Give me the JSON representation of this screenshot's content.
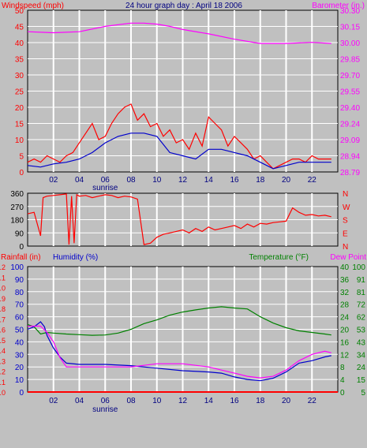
{
  "header": {
    "left_title": "Windspeed (mph)",
    "center_title": "24 hour graph day : April 18 2006",
    "right_title": "Barometer (in.)"
  },
  "colors": {
    "background": "#c0c0c0",
    "plot_bg": "#c0c0c0",
    "grid": "#ffffff",
    "wind": "#ff0000",
    "wind_avg": "#0000cc",
    "barometer": "#ff00ff",
    "direction": "#ff0000",
    "rain": "#ff0000",
    "humidity": "#0000cc",
    "temperature": "#008000",
    "dewpoint": "#ff00ff"
  },
  "x_ticks": [
    "02",
    "04",
    "06",
    "08",
    "10",
    "12",
    "14",
    "16",
    "18",
    "20",
    "22"
  ],
  "sunrise_label": "sunrise",
  "chart_data": [
    {
      "type": "line",
      "title": "24 hour graph day : April 18 2006",
      "xlabel": "",
      "ylabel": "Windspeed (mph)",
      "ylabel_right": "Barometer (in.)",
      "x_range_hours": [
        0,
        24
      ],
      "ylim": [
        0,
        50
      ],
      "ylim_right": [
        28.79,
        30.3
      ],
      "y_ticks_left": [
        "0",
        "5",
        "10",
        "15",
        "20",
        "25",
        "30",
        "35",
        "40",
        "45",
        "50"
      ],
      "y_ticks_right": [
        "28.79",
        "28.94",
        "29.09",
        "29.24",
        "29.40",
        "29.55",
        "29.70",
        "29.85",
        "30.00",
        "30.15",
        "30.30"
      ],
      "series": [
        {
          "name": "Windspeed (mph)",
          "axis": "left",
          "x": [
            0,
            0.5,
            1,
            1.5,
            2,
            2.5,
            3,
            3.5,
            4,
            4.5,
            5,
            5.5,
            6,
            6.5,
            7,
            7.5,
            8,
            8.5,
            9,
            9.5,
            10,
            10.5,
            11,
            11.5,
            12,
            12.5,
            13,
            13.5,
            14,
            14.5,
            15,
            15.5,
            16,
            16.5,
            17,
            17.5,
            18,
            18.5,
            19,
            19.5,
            20,
            20.5,
            21,
            21.5,
            22,
            22.5,
            23,
            23.5
          ],
          "y": [
            3,
            4,
            3,
            5,
            4,
            3,
            5,
            6,
            9,
            12,
            15,
            10,
            11,
            15,
            18,
            20,
            21,
            16,
            18,
            14,
            15,
            11,
            13,
            9,
            10,
            7,
            12,
            8,
            17,
            15,
            13,
            8,
            11,
            9,
            7,
            4,
            5,
            3,
            1,
            2,
            3,
            4,
            4,
            3,
            5,
            4,
            4,
            4
          ]
        },
        {
          "name": "Wind average",
          "axis": "left",
          "x": [
            0,
            1,
            2,
            3,
            4,
            5,
            6,
            7,
            8,
            9,
            10,
            11,
            12,
            13,
            14,
            15,
            16,
            17,
            18,
            19,
            20,
            21,
            22,
            23.5
          ],
          "y": [
            2,
            1.5,
            2.5,
            3,
            4,
            6,
            9,
            11,
            12,
            12,
            11,
            6,
            5,
            4,
            7,
            7,
            6,
            5,
            3,
            1,
            2,
            3,
            3,
            3
          ]
        },
        {
          "name": "Barometer (in.)",
          "axis": "right",
          "x": [
            0,
            2,
            4,
            6,
            8,
            9,
            10,
            11,
            12,
            14,
            16,
            18,
            20,
            22,
            23.5
          ],
          "y": [
            30.1,
            30.09,
            30.1,
            30.15,
            30.18,
            30.18,
            30.17,
            30.15,
            30.12,
            30.08,
            30.03,
            29.99,
            29.99,
            30.0,
            29.99
          ]
        }
      ]
    },
    {
      "type": "line",
      "ylabel": "",
      "x_range_hours": [
        0,
        24
      ],
      "ylim": [
        0,
        360
      ],
      "y_ticks_left": [
        "0",
        "90",
        "180",
        "270",
        "360"
      ],
      "y_ticks_right": [
        "N",
        "E",
        "S",
        "W",
        "N"
      ],
      "series": [
        {
          "name": "Wind direction",
          "x": [
            0,
            0.5,
            1,
            1.2,
            1.5,
            2,
            2.5,
            3,
            3.2,
            3.4,
            3.6,
            3.8,
            4,
            4.5,
            5,
            5.5,
            6,
            6.5,
            7,
            7.5,
            8,
            8.5,
            9,
            9.5,
            10,
            10.5,
            11,
            11.5,
            12,
            12.5,
            13,
            13.5,
            14,
            14.5,
            15,
            15.5,
            16,
            16.5,
            17,
            17.5,
            18,
            18.5,
            19,
            19.5,
            20,
            20.5,
            21,
            21.5,
            22,
            22.5,
            23,
            23.5
          ],
          "y": [
            220,
            230,
            70,
            330,
            340,
            345,
            350,
            355,
            10,
            340,
            20,
            350,
            340,
            345,
            330,
            340,
            350,
            345,
            330,
            340,
            335,
            320,
            10,
            20,
            60,
            80,
            90,
            100,
            110,
            90,
            120,
            100,
            130,
            110,
            120,
            130,
            140,
            120,
            150,
            130,
            155,
            150,
            160,
            165,
            170,
            260,
            230,
            210,
            215,
            205,
            210,
            200
          ]
        }
      ]
    },
    {
      "type": "line",
      "ylabel_left_outer": "Rainfall (in)",
      "ylabel_left": "Humidity (%)",
      "ylabel_right": "Temperature (°F)",
      "ylabel_right_outer": "Dew Point",
      "x_range_hours": [
        0,
        24
      ],
      "rain_ticks": [
        "0.0",
        "0.1",
        "0.2",
        "0.3",
        "0.4",
        "0.5",
        "0.6",
        "0.7",
        "0.8",
        "0.9",
        "1.0",
        "1.1",
        "1.2"
      ],
      "humidity_ticks": [
        "0",
        "10",
        "20",
        "30",
        "40",
        "50",
        "60",
        "70",
        "80",
        "90",
        "100"
      ],
      "temperature_ticks": [
        "0",
        "4",
        "8",
        "12",
        "16",
        "20",
        "24",
        "28",
        "32",
        "36",
        "40"
      ],
      "dewpoint_ticks": [
        "5",
        "15",
        "24",
        "34",
        "43",
        "53",
        "62",
        "72",
        "81",
        "91",
        "100"
      ],
      "series": [
        {
          "name": "Rainfall (in)",
          "axis": "rain",
          "x": [
            0,
            24
          ],
          "y": [
            0,
            0
          ]
        },
        {
          "name": "Humidity (%)",
          "axis": "humidity",
          "x": [
            0,
            0.5,
            1,
            1.3,
            1.5,
            2,
            2.5,
            3,
            4,
            5,
            6,
            8,
            10,
            12,
            14,
            15,
            16,
            17,
            18,
            19,
            20,
            21,
            22,
            23,
            23.5
          ],
          "y": [
            50,
            52,
            56,
            52,
            45,
            35,
            28,
            23,
            22,
            22,
            22,
            21,
            19,
            17,
            16,
            15,
            12,
            10,
            9,
            11,
            16,
            23,
            25,
            28,
            29
          ]
        },
        {
          "name": "Temperature (°F)",
          "axis": "temperature",
          "x": [
            0,
            0.5,
            1,
            1.5,
            2,
            3,
            4,
            5,
            6,
            7,
            8,
            9,
            10,
            11,
            12,
            13,
            14,
            15,
            16,
            17,
            18,
            19,
            20,
            21,
            22,
            23,
            23.5
          ],
          "y": [
            21.5,
            20.8,
            18.5,
            19,
            18.8,
            18.5,
            18.3,
            18.1,
            18.2,
            18.8,
            20,
            21.8,
            23,
            24.5,
            25.5,
            26.2,
            26.8,
            27.2,
            26.8,
            26.5,
            24,
            22,
            20.5,
            19.5,
            19,
            18.5,
            18.2
          ]
        },
        {
          "name": "Dew Point",
          "axis": "dewpoint",
          "x": [
            0,
            0.5,
            1,
            1.5,
            2,
            2.5,
            3,
            4,
            5,
            6,
            8,
            10,
            12,
            14,
            15,
            16,
            17,
            18,
            19,
            20,
            21,
            22,
            23,
            23.5
          ],
          "y": [
            21,
            21,
            21,
            19,
            16,
            11,
            8,
            8,
            8,
            8,
            8,
            9,
            9,
            8,
            7,
            6,
            5,
            4.5,
            5,
            7,
            10,
            12,
            13,
            12.5
          ]
        }
      ]
    }
  ]
}
